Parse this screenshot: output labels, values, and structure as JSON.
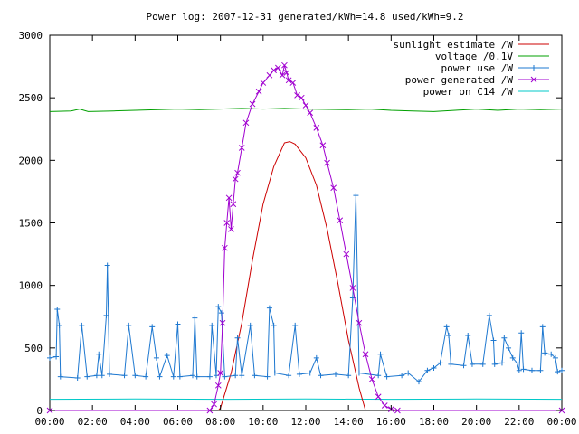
{
  "chart_data": {
    "type": "line",
    "title": "Power log: 2007-12-31 generated/kWh=14.8 used/kWh=9.2",
    "xlabel": "",
    "ylabel": "",
    "xlim": [
      "00:00",
      "24:00"
    ],
    "ylim": [
      0,
      3000
    ],
    "x_ticks": [
      "00:00",
      "02:00",
      "04:00",
      "06:00",
      "08:00",
      "10:00",
      "12:00",
      "14:00",
      "16:00",
      "18:00",
      "20:00",
      "22:00",
      "00:00"
    ],
    "y_ticks": [
      0,
      500,
      1000,
      1500,
      2000,
      2500,
      3000
    ],
    "grid": false,
    "legend_position": "top-right",
    "series": [
      {
        "name": "sunlight estimate /W",
        "color": "#cc0000",
        "style": "line",
        "points": [
          [
            7.9,
            0
          ],
          [
            8.0,
            20
          ],
          [
            8.5,
            300
          ],
          [
            9.0,
            700
          ],
          [
            9.5,
            1200
          ],
          [
            10.0,
            1650
          ],
          [
            10.5,
            1950
          ],
          [
            11.0,
            2140
          ],
          [
            11.25,
            2150
          ],
          [
            11.5,
            2130
          ],
          [
            12.0,
            2020
          ],
          [
            12.5,
            1800
          ],
          [
            13.0,
            1450
          ],
          [
            13.5,
            1020
          ],
          [
            14.0,
            560
          ],
          [
            14.5,
            180
          ],
          [
            14.8,
            0
          ]
        ]
      },
      {
        "name": "voltage /0.1V",
        "color": "#00a000",
        "style": "line",
        "points": [
          [
            0,
            2390
          ],
          [
            1,
            2395
          ],
          [
            1.4,
            2410
          ],
          [
            1.8,
            2390
          ],
          [
            3,
            2395
          ],
          [
            4,
            2400
          ],
          [
            6,
            2410
          ],
          [
            7,
            2405
          ],
          [
            8,
            2410
          ],
          [
            9,
            2415
          ],
          [
            10,
            2410
          ],
          [
            11,
            2415
          ],
          [
            12,
            2410
          ],
          [
            14,
            2405
          ],
          [
            15,
            2410
          ],
          [
            16,
            2400
          ],
          [
            17,
            2395
          ],
          [
            18,
            2390
          ],
          [
            19,
            2400
          ],
          [
            20,
            2410
          ],
          [
            21,
            2400
          ],
          [
            22,
            2410
          ],
          [
            23,
            2405
          ],
          [
            24,
            2410
          ]
        ]
      },
      {
        "name": "power use /W",
        "color": "#1e78d0",
        "style": "linespoints",
        "points": [
          [
            0,
            420
          ],
          [
            0.3,
            430
          ],
          [
            0.35,
            810
          ],
          [
            0.45,
            680
          ],
          [
            0.5,
            270
          ],
          [
            1.3,
            260
          ],
          [
            1.5,
            680
          ],
          [
            1.75,
            270
          ],
          [
            2.2,
            280
          ],
          [
            2.3,
            450
          ],
          [
            2.45,
            280
          ],
          [
            2.65,
            760
          ],
          [
            2.7,
            1160
          ],
          [
            2.8,
            290
          ],
          [
            3.5,
            280
          ],
          [
            3.7,
            680
          ],
          [
            4.0,
            280
          ],
          [
            4.5,
            270
          ],
          [
            4.8,
            670
          ],
          [
            5.0,
            420
          ],
          [
            5.15,
            270
          ],
          [
            5.5,
            440
          ],
          [
            5.8,
            270
          ],
          [
            6.0,
            690
          ],
          [
            6.1,
            270
          ],
          [
            6.7,
            280
          ],
          [
            6.8,
            740
          ],
          [
            6.9,
            270
          ],
          [
            7.5,
            270
          ],
          [
            7.6,
            680
          ],
          [
            7.8,
            280
          ],
          [
            7.9,
            830
          ],
          [
            8.05,
            780
          ],
          [
            8.2,
            270
          ],
          [
            8.7,
            280
          ],
          [
            8.8,
            580
          ],
          [
            9.0,
            280
          ],
          [
            9.4,
            680
          ],
          [
            9.6,
            280
          ],
          [
            10.2,
            270
          ],
          [
            10.3,
            820
          ],
          [
            10.5,
            680
          ],
          [
            10.55,
            300
          ],
          [
            11.2,
            280
          ],
          [
            11.5,
            680
          ],
          [
            11.7,
            290
          ],
          [
            12.2,
            300
          ],
          [
            12.5,
            420
          ],
          [
            12.7,
            280
          ],
          [
            13.4,
            290
          ],
          [
            14.0,
            280
          ],
          [
            14.2,
            900
          ],
          [
            14.35,
            1720
          ],
          [
            14.5,
            300
          ],
          [
            15.4,
            280
          ],
          [
            15.5,
            450
          ],
          [
            15.8,
            270
          ],
          [
            16.5,
            280
          ],
          [
            16.8,
            300
          ],
          [
            17.3,
            230
          ],
          [
            17.7,
            320
          ],
          [
            18.0,
            340
          ],
          [
            18.3,
            380
          ],
          [
            18.6,
            670
          ],
          [
            18.7,
            600
          ],
          [
            18.8,
            370
          ],
          [
            19.4,
            360
          ],
          [
            19.6,
            600
          ],
          [
            19.8,
            370
          ],
          [
            20.3,
            370
          ],
          [
            20.6,
            760
          ],
          [
            20.8,
            560
          ],
          [
            20.85,
            370
          ],
          [
            21.2,
            380
          ],
          [
            21.3,
            580
          ],
          [
            21.5,
            500
          ],
          [
            21.7,
            420
          ],
          [
            21.9,
            380
          ],
          [
            22.0,
            320
          ],
          [
            22.1,
            620
          ],
          [
            22.2,
            330
          ],
          [
            22.6,
            320
          ],
          [
            23.0,
            320
          ],
          [
            23.1,
            670
          ],
          [
            23.2,
            460
          ],
          [
            23.5,
            450
          ],
          [
            23.7,
            420
          ],
          [
            23.8,
            310
          ],
          [
            24,
            320
          ]
        ]
      },
      {
        "name": "power generated /W",
        "color": "#a000d0",
        "style": "linespoints",
        "points": [
          [
            0,
            0
          ],
          [
            7.5,
            0
          ],
          [
            7.7,
            50
          ],
          [
            7.9,
            200
          ],
          [
            8.0,
            300
          ],
          [
            8.1,
            700
          ],
          [
            8.2,
            1300
          ],
          [
            8.3,
            1500
          ],
          [
            8.4,
            1700
          ],
          [
            8.5,
            1450
          ],
          [
            8.6,
            1650
          ],
          [
            8.7,
            1850
          ],
          [
            8.8,
            1900
          ],
          [
            9.0,
            2100
          ],
          [
            9.2,
            2300
          ],
          [
            9.5,
            2450
          ],
          [
            9.8,
            2550
          ],
          [
            10.0,
            2620
          ],
          [
            10.3,
            2680
          ],
          [
            10.5,
            2720
          ],
          [
            10.7,
            2740
          ],
          [
            10.9,
            2680
          ],
          [
            11.0,
            2760
          ],
          [
            11.1,
            2700
          ],
          [
            11.2,
            2640
          ],
          [
            11.4,
            2620
          ],
          [
            11.6,
            2520
          ],
          [
            11.8,
            2500
          ],
          [
            12.0,
            2440
          ],
          [
            12.2,
            2380
          ],
          [
            12.5,
            2260
          ],
          [
            12.8,
            2120
          ],
          [
            13.0,
            1980
          ],
          [
            13.3,
            1780
          ],
          [
            13.6,
            1520
          ],
          [
            13.9,
            1250
          ],
          [
            14.2,
            980
          ],
          [
            14.5,
            700
          ],
          [
            14.8,
            450
          ],
          [
            15.1,
            250
          ],
          [
            15.4,
            110
          ],
          [
            15.7,
            40
          ],
          [
            16.0,
            10
          ],
          [
            16.3,
            0
          ],
          [
            24,
            0
          ]
        ]
      },
      {
        "name": "power on C14 /W",
        "color": "#00c8c8",
        "style": "line",
        "points": [
          [
            0,
            90
          ],
          [
            4,
            92
          ],
          [
            8,
            90
          ],
          [
            12,
            92
          ],
          [
            16,
            90
          ],
          [
            20,
            92
          ],
          [
            24,
            90
          ]
        ]
      }
    ]
  }
}
